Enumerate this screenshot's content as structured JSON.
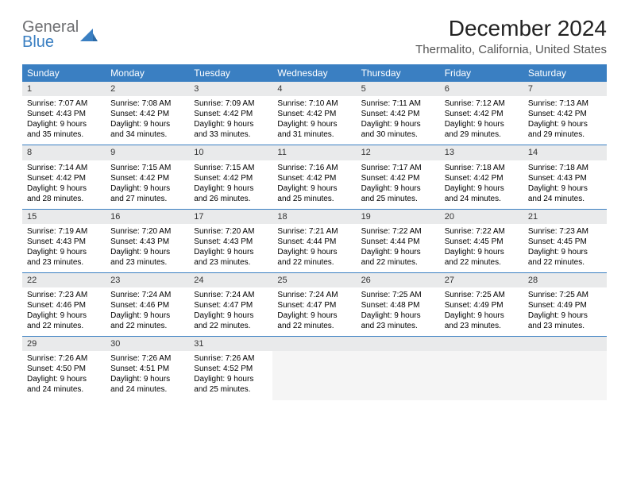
{
  "logo": {
    "general": "General",
    "blue": "Blue"
  },
  "title": "December 2024",
  "location": "Thermalito, California, United States",
  "colors": {
    "header_bg": "#3a7fc2",
    "header_text": "#ffffff",
    "daynum_bg": "#e9eaeb",
    "rule": "#3a7fc2",
    "logo_gray": "#6d6e71",
    "logo_blue": "#3a7fc2"
  },
  "typography": {
    "title_fontsize": 28,
    "location_fontsize": 15,
    "dow_fontsize": 12,
    "body_fontsize": 10
  },
  "dow": [
    "Sunday",
    "Monday",
    "Tuesday",
    "Wednesday",
    "Thursday",
    "Friday",
    "Saturday"
  ],
  "weeks": [
    [
      {
        "n": "1",
        "sr": "7:07 AM",
        "ss": "4:43 PM",
        "dl": "9 hours and 35 minutes."
      },
      {
        "n": "2",
        "sr": "7:08 AM",
        "ss": "4:42 PM",
        "dl": "9 hours and 34 minutes."
      },
      {
        "n": "3",
        "sr": "7:09 AM",
        "ss": "4:42 PM",
        "dl": "9 hours and 33 minutes."
      },
      {
        "n": "4",
        "sr": "7:10 AM",
        "ss": "4:42 PM",
        "dl": "9 hours and 31 minutes."
      },
      {
        "n": "5",
        "sr": "7:11 AM",
        "ss": "4:42 PM",
        "dl": "9 hours and 30 minutes."
      },
      {
        "n": "6",
        "sr": "7:12 AM",
        "ss": "4:42 PM",
        "dl": "9 hours and 29 minutes."
      },
      {
        "n": "7",
        "sr": "7:13 AM",
        "ss": "4:42 PM",
        "dl": "9 hours and 29 minutes."
      }
    ],
    [
      {
        "n": "8",
        "sr": "7:14 AM",
        "ss": "4:42 PM",
        "dl": "9 hours and 28 minutes."
      },
      {
        "n": "9",
        "sr": "7:15 AM",
        "ss": "4:42 PM",
        "dl": "9 hours and 27 minutes."
      },
      {
        "n": "10",
        "sr": "7:15 AM",
        "ss": "4:42 PM",
        "dl": "9 hours and 26 minutes."
      },
      {
        "n": "11",
        "sr": "7:16 AM",
        "ss": "4:42 PM",
        "dl": "9 hours and 25 minutes."
      },
      {
        "n": "12",
        "sr": "7:17 AM",
        "ss": "4:42 PM",
        "dl": "9 hours and 25 minutes."
      },
      {
        "n": "13",
        "sr": "7:18 AM",
        "ss": "4:42 PM",
        "dl": "9 hours and 24 minutes."
      },
      {
        "n": "14",
        "sr": "7:18 AM",
        "ss": "4:43 PM",
        "dl": "9 hours and 24 minutes."
      }
    ],
    [
      {
        "n": "15",
        "sr": "7:19 AM",
        "ss": "4:43 PM",
        "dl": "9 hours and 23 minutes."
      },
      {
        "n": "16",
        "sr": "7:20 AM",
        "ss": "4:43 PM",
        "dl": "9 hours and 23 minutes."
      },
      {
        "n": "17",
        "sr": "7:20 AM",
        "ss": "4:43 PM",
        "dl": "9 hours and 23 minutes."
      },
      {
        "n": "18",
        "sr": "7:21 AM",
        "ss": "4:44 PM",
        "dl": "9 hours and 22 minutes."
      },
      {
        "n": "19",
        "sr": "7:22 AM",
        "ss": "4:44 PM",
        "dl": "9 hours and 22 minutes."
      },
      {
        "n": "20",
        "sr": "7:22 AM",
        "ss": "4:45 PM",
        "dl": "9 hours and 22 minutes."
      },
      {
        "n": "21",
        "sr": "7:23 AM",
        "ss": "4:45 PM",
        "dl": "9 hours and 22 minutes."
      }
    ],
    [
      {
        "n": "22",
        "sr": "7:23 AM",
        "ss": "4:46 PM",
        "dl": "9 hours and 22 minutes."
      },
      {
        "n": "23",
        "sr": "7:24 AM",
        "ss": "4:46 PM",
        "dl": "9 hours and 22 minutes."
      },
      {
        "n": "24",
        "sr": "7:24 AM",
        "ss": "4:47 PM",
        "dl": "9 hours and 22 minutes."
      },
      {
        "n": "25",
        "sr": "7:24 AM",
        "ss": "4:47 PM",
        "dl": "9 hours and 22 minutes."
      },
      {
        "n": "26",
        "sr": "7:25 AM",
        "ss": "4:48 PM",
        "dl": "9 hours and 23 minutes."
      },
      {
        "n": "27",
        "sr": "7:25 AM",
        "ss": "4:49 PM",
        "dl": "9 hours and 23 minutes."
      },
      {
        "n": "28",
        "sr": "7:25 AM",
        "ss": "4:49 PM",
        "dl": "9 hours and 23 minutes."
      }
    ],
    [
      {
        "n": "29",
        "sr": "7:26 AM",
        "ss": "4:50 PM",
        "dl": "9 hours and 24 minutes."
      },
      {
        "n": "30",
        "sr": "7:26 AM",
        "ss": "4:51 PM",
        "dl": "9 hours and 24 minutes."
      },
      {
        "n": "31",
        "sr": "7:26 AM",
        "ss": "4:52 PM",
        "dl": "9 hours and 25 minutes."
      },
      null,
      null,
      null,
      null
    ]
  ],
  "labels": {
    "sunrise": "Sunrise:",
    "sunset": "Sunset:",
    "daylight": "Daylight:"
  }
}
